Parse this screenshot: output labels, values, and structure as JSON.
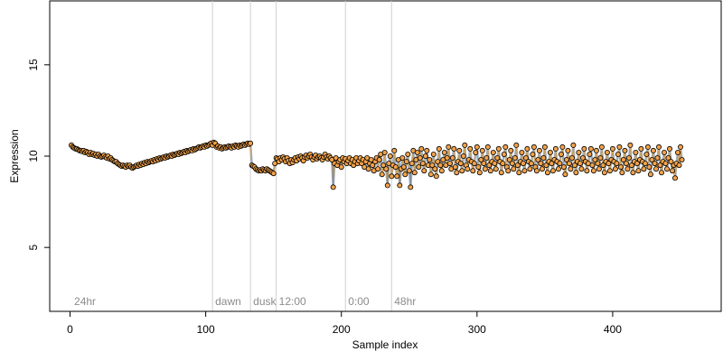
{
  "chart_data": {
    "type": "scatter",
    "xlabel": "Sample index",
    "ylabel": "Expression",
    "xlim": [
      -15,
      480
    ],
    "ylim": [
      1.5,
      18.5
    ],
    "x_ticks": [
      0,
      100,
      200,
      300,
      400
    ],
    "y_ticks": [
      5,
      10,
      15
    ],
    "x_tick_labels": [
      "0",
      "100",
      "200",
      "300",
      "400"
    ],
    "y_tick_labels": [
      "5",
      "10",
      "15"
    ],
    "grid": false,
    "vertical_markers": [
      {
        "x": 105,
        "label": "dawn"
      },
      {
        "x": 133,
        "label": "dusk"
      },
      {
        "x": 152,
        "label": "12:00"
      },
      {
        "x": 203,
        "label": "0:00"
      },
      {
        "x": 237,
        "label": "48hr"
      }
    ],
    "corner_label": {
      "x": 3,
      "label": "24hr"
    },
    "series": [
      {
        "values": [
          10.6,
          10.5,
          10.45,
          10.4,
          10.4,
          10.35,
          10.3,
          10.3,
          10.25,
          10.3,
          10.2,
          10.25,
          10.2,
          10.1,
          10.2,
          10.1,
          10.15,
          10.05,
          10.1,
          10.0,
          10.1,
          10.0,
          9.95,
          10.0,
          10.05,
          9.95,
          9.9,
          10.0,
          9.85,
          9.9,
          9.8,
          9.75,
          9.7,
          9.7,
          9.6,
          9.55,
          9.5,
          9.45,
          9.5,
          9.45,
          9.4,
          9.5,
          9.45,
          9.5,
          9.4,
          9.35,
          9.4,
          9.45,
          9.5,
          9.45,
          9.55,
          9.5,
          9.6,
          9.55,
          9.65,
          9.6,
          9.7,
          9.65,
          9.7,
          9.75,
          9.7,
          9.8,
          9.75,
          9.85,
          9.8,
          9.9,
          9.85,
          9.9,
          9.95,
          9.9,
          10.0,
          9.95,
          10.0,
          10.05,
          10.0,
          10.1,
          10.05,
          10.1,
          10.15,
          10.1,
          10.2,
          10.15,
          10.2,
          10.25,
          10.2,
          10.3,
          10.25,
          10.3,
          10.35,
          10.3,
          10.4,
          10.35,
          10.4,
          10.45,
          10.5,
          10.45,
          10.5,
          10.55,
          10.5,
          10.6,
          10.55,
          10.6,
          10.65,
          10.7,
          10.6,
          10.75,
          10.7,
          10.5,
          10.55,
          10.45,
          10.5,
          10.4,
          10.45,
          10.5,
          10.45,
          10.5,
          10.55,
          10.5,
          10.45,
          10.55,
          10.5,
          10.6,
          10.55,
          10.5,
          10.6,
          10.55,
          10.6,
          10.65,
          10.6,
          10.65,
          10.7,
          10.65,
          10.7,
          9.5,
          9.45,
          9.4,
          9.3,
          9.25,
          9.2,
          9.25,
          9.2,
          9.3,
          9.25,
          9.2,
          9.3,
          9.25,
          9.2,
          9.15,
          9.1,
          9.05,
          9.6,
          9.9,
          9.85,
          9.7,
          9.9,
          9.8,
          9.95,
          9.85,
          9.7,
          9.9,
          9.75,
          9.6,
          9.8,
          9.65,
          9.8,
          9.9,
          9.75,
          9.95,
          9.85,
          10.0,
          9.9,
          9.75,
          9.95,
          10.05,
          9.9,
          10.0,
          10.1,
          9.95,
          9.8,
          9.95,
          10.05,
          9.85,
          9.95,
          10.0,
          9.9,
          9.8,
          9.95,
          10.1,
          9.95,
          9.85,
          10.0,
          9.9,
          9.8,
          8.3,
          9.6,
          9.9,
          9.5,
          9.7,
          9.8,
          9.4,
          9.9,
          9.7,
          9.85,
          9.6,
          9.75,
          9.9,
          9.6,
          9.8,
          9.5,
          9.7,
          9.9,
          9.6,
          9.75,
          9.9,
          9.6,
          9.8,
          9.4,
          9.7,
          9.9,
          9.3,
          9.6,
          9.8,
          9.5,
          9.2,
          9.7,
          9.9,
          9.3,
          9.8,
          10.1,
          9.0,
          9.5,
          10.2,
          9.3,
          8.4,
          9.6,
          10.0,
          8.9,
          9.5,
          10.3,
          9.4,
          8.9,
          9.8,
          8.4,
          9.3,
          9.9,
          9.4,
          9.0,
          9.7,
          10.1,
          9.2,
          8.3,
          9.6,
          10.3,
          9.1,
          9.8,
          10.2,
          9.4,
          9.9,
          10.4,
          9.6,
          9.2,
          10.0,
          10.3,
          9.5,
          9.8,
          9.0,
          9.5,
          10.1,
          9.3,
          8.9,
          9.7,
          10.4,
          9.5,
          9.2,
          9.8,
          10.2,
          9.5,
          9.9,
          10.5,
          9.6,
          9.3,
          9.9,
          10.4,
          9.4,
          9.1,
          9.7,
          10.3,
          9.6,
          9.2,
          10.0,
          10.6,
          9.5,
          9.3,
          9.8,
          10.4,
          9.7,
          9.2,
          9.6,
          10.2,
          10.5,
          9.4,
          9.1,
          9.8,
          10.3,
          9.6,
          9.3,
          9.9,
          10.5,
          9.5,
          9.2,
          9.7,
          10.2,
          9.6,
          9.3,
          9.9,
          10.4,
          9.7,
          9.1,
          9.6,
          10.1,
          10.5,
          9.4,
          9.2,
          9.8,
          10.3,
          9.6,
          9.3,
          9.9,
          10.6,
          9.5,
          9.1,
          9.7,
          10.2,
          9.6,
          9.2,
          9.9,
          10.4,
          9.7,
          9.3,
          9.6,
          10.1,
          10.5,
          9.4,
          9.2,
          9.8,
          10.3,
          9.6,
          9.3,
          9.9,
          10.5,
          9.5,
          9.1,
          9.7,
          10.2,
          9.6,
          9.2,
          9.8,
          10.4,
          9.7,
          9.3,
          9.6,
          10.1,
          10.5,
          9.4,
          9.0,
          9.8,
          10.3,
          9.6,
          9.3,
          9.9,
          10.6,
          9.5,
          9.1,
          9.7,
          10.2,
          9.6,
          9.3,
          9.9,
          10.4,
          9.7,
          9.2,
          9.6,
          10.1,
          10.4,
          9.5,
          9.2,
          9.8,
          10.3,
          9.6,
          9.3,
          9.9,
          10.5,
          9.5,
          9.1,
          9.7,
          10.2,
          9.6,
          9.2,
          9.8,
          10.4,
          9.7,
          9.3,
          9.6,
          10.1,
          10.5,
          9.4,
          9.1,
          9.8,
          10.3,
          9.6,
          9.3,
          9.9,
          10.6,
          9.5,
          9.1,
          9.7,
          10.2,
          9.6,
          9.2,
          9.8,
          10.4,
          9.7,
          9.3,
          9.6,
          10.1,
          10.5,
          9.4,
          9.0,
          9.8,
          10.3,
          9.6,
          9.3,
          9.9,
          10.5,
          9.5,
          9.1,
          9.7,
          10.2,
          9.6,
          9.3,
          9.9,
          10.4,
          9.7,
          9.2,
          9.5,
          8.8,
          9.6,
          10.2,
          9.5,
          10.5,
          9.8
        ]
      }
    ],
    "colors": {
      "point_fill": "#f2a24a",
      "point_stroke": "#000000",
      "line_blue": "#9ab5d8",
      "line_orange": "#d49a40",
      "segment_blue": "#5a86c8",
      "marker_line": "#cfcfcf",
      "marker_label": "#8c8c8c",
      "axis": "#000000"
    }
  }
}
